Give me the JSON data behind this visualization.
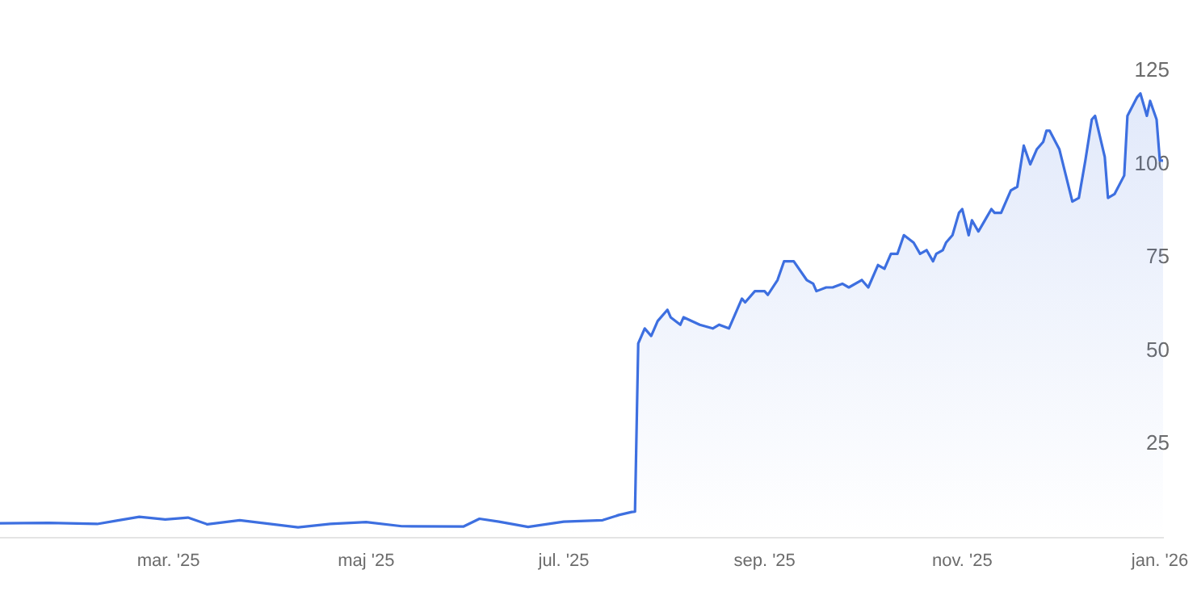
{
  "chart_data": {
    "type": "area",
    "marker": "none",
    "grid": false,
    "x": [
      "2025-01-08",
      "2025-01-23",
      "2025-02-07",
      "2025-02-13",
      "2025-02-20",
      "2025-02-28",
      "2025-03-07",
      "2025-03-13",
      "2025-03-23",
      "2025-04-10",
      "2025-04-20",
      "2025-05-01",
      "2025-05-12",
      "2025-05-31",
      "2025-06-05",
      "2025-06-11",
      "2025-06-20",
      "2025-07-01",
      "2025-07-13",
      "2025-07-18",
      "2025-07-22",
      "2025-07-23",
      "2025-07-24",
      "2025-07-26",
      "2025-07-28",
      "2025-07-30",
      "2025-08-02",
      "2025-08-03",
      "2025-08-06",
      "2025-08-07",
      "2025-08-12",
      "2025-08-16",
      "2025-08-18",
      "2025-08-21",
      "2025-08-25",
      "2025-08-26",
      "2025-08-29",
      "2025-09-01",
      "2025-09-02",
      "2025-09-05",
      "2025-09-07",
      "2025-09-10",
      "2025-09-14",
      "2025-09-16",
      "2025-09-17",
      "2025-09-20",
      "2025-09-22",
      "2025-09-25",
      "2025-09-27",
      "2025-10-01",
      "2025-10-03",
      "2025-10-06",
      "2025-10-08",
      "2025-10-10",
      "2025-10-12",
      "2025-10-14",
      "2025-10-17",
      "2025-10-19",
      "2025-10-21",
      "2025-10-23",
      "2025-10-24",
      "2025-10-26",
      "2025-10-27",
      "2025-10-29",
      "2025-10-31",
      "2025-11-01",
      "2025-11-03",
      "2025-11-04",
      "2025-11-06",
      "2025-11-08",
      "2025-11-10",
      "2025-11-11",
      "2025-11-13",
      "2025-11-16",
      "2025-11-18",
      "2025-11-20",
      "2025-11-22",
      "2025-11-24",
      "2025-11-26",
      "2025-11-27",
      "2025-11-28",
      "2025-12-01",
      "2025-12-05",
      "2025-12-07",
      "2025-12-09",
      "2025-12-11",
      "2025-12-12",
      "2025-12-15",
      "2025-12-16",
      "2025-12-18",
      "2025-12-21",
      "2025-12-22",
      "2025-12-25",
      "2025-12-26",
      "2025-12-28",
      "2025-12-29",
      "2025-12-31",
      "2026-01-01",
      "2026-01-02"
    ],
    "series": [
      {
        "color": "#3d6fe0",
        "values": [
          3.8,
          3.9,
          3.6,
          4.5,
          5.5,
          4.8,
          5.3,
          3.5,
          4.6,
          2.7,
          3.6,
          4.1,
          3.0,
          2.9,
          5.0,
          4.2,
          2.8,
          4.2,
          4.6,
          6.0,
          6.8,
          6.9,
          52,
          56,
          54,
          58,
          61,
          59,
          57,
          59,
          57,
          56,
          57,
          56,
          64,
          63,
          66,
          66,
          65,
          69,
          74,
          74,
          69,
          68,
          66,
          67,
          67,
          68,
          67,
          69,
          67,
          73,
          72,
          76,
          76,
          81,
          79,
          76,
          77,
          74,
          76,
          77,
          79,
          81,
          87,
          88,
          81,
          85,
          82,
          85,
          88,
          87,
          87,
          93,
          94,
          105,
          100,
          104,
          106,
          109,
          109,
          104,
          90,
          91,
          101,
          112,
          113,
          102,
          91,
          92,
          97,
          113,
          118,
          119,
          113,
          117,
          112,
          101,
          101
        ]
      }
    ],
    "xticks": [
      {
        "value": "2025-03-01",
        "label": "mar. '25"
      },
      {
        "value": "2025-05-01",
        "label": "maj '25"
      },
      {
        "value": "2025-07-01",
        "label": "jul. '25"
      },
      {
        "value": "2025-09-01",
        "label": "sep. '25"
      },
      {
        "value": "2025-11-01",
        "label": "nov. '25"
      },
      {
        "value": "2026-01-01",
        "label": "jan. '26"
      }
    ],
    "xlim": [
      "2025-01-08",
      "2026-01-02"
    ],
    "ylim": [
      0,
      125
    ],
    "yticks": [
      25,
      50,
      75,
      100,
      125
    ]
  }
}
